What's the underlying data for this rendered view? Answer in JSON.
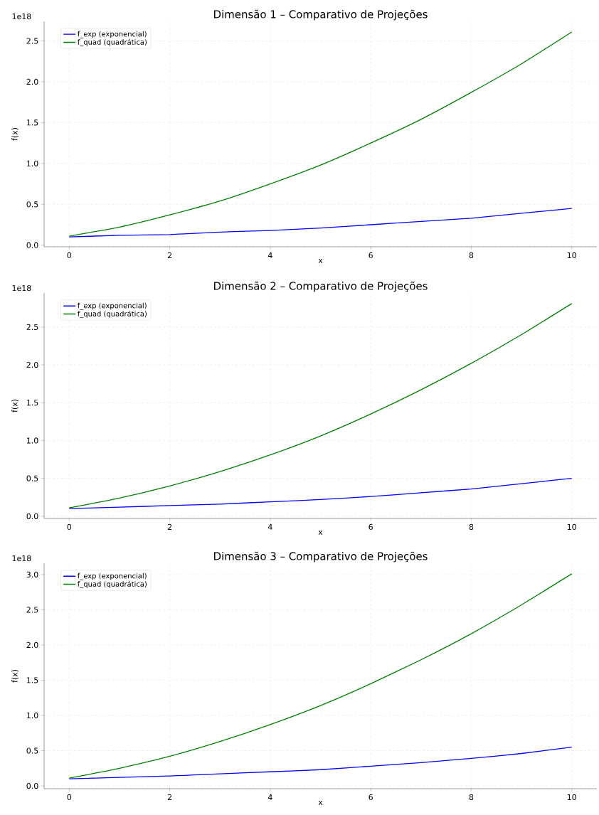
{
  "chart_data": [
    {
      "type": "line",
      "title": "Dimensão 1 – Comparativo de Projeções",
      "xlabel": "x",
      "ylabel": "f(x)",
      "annotations": [
        "1e18"
      ],
      "grid": true,
      "legend": "top left",
      "x": [
        0,
        1,
        2,
        3,
        4,
        5,
        6,
        7,
        8,
        9,
        10
      ],
      "xlim": [
        -0.5,
        10.5
      ],
      "ylim": [
        -0.02,
        2.74
      ],
      "xticks": [
        0,
        2,
        4,
        6,
        8,
        10
      ],
      "yticks": [
        {
          "value": 0,
          "label": "0.0"
        },
        {
          "value": 0.5,
          "label": "0.5"
        },
        {
          "value": 1,
          "label": "1.0"
        },
        {
          "value": 1.5,
          "label": "1.5"
        },
        {
          "value": 2,
          "label": "2.0"
        },
        {
          "value": 2.5,
          "label": "2.5"
        }
      ],
      "series": [
        {
          "name": "f_exp (exponencial)",
          "color": "#0000ff",
          "values": [
            0.1,
            0.12,
            0.13,
            0.16,
            0.18,
            0.21,
            0.25,
            0.29,
            0.33,
            0.39,
            0.45
          ]
        },
        {
          "name": "f_quad (quadrática)",
          "color": "#008000",
          "values": [
            0.11,
            0.22,
            0.37,
            0.54,
            0.75,
            0.98,
            1.25,
            1.54,
            1.87,
            2.22,
            2.61
          ]
        }
      ]
    },
    {
      "type": "line",
      "title": "Dimensão 2 – Comparativo de Projeções",
      "xlabel": "x",
      "ylabel": "f(x)",
      "annotations": [
        "1e18"
      ],
      "grid": true,
      "legend": "top left",
      "x": [
        0,
        1,
        2,
        3,
        4,
        5,
        6,
        7,
        8,
        9,
        10
      ],
      "xlim": [
        -0.5,
        10.5
      ],
      "ylim": [
        -0.03,
        2.95
      ],
      "xticks": [
        0,
        2,
        4,
        6,
        8,
        10
      ],
      "yticks": [
        {
          "value": 0,
          "label": "0.0"
        },
        {
          "value": 0.5,
          "label": "0.5"
        },
        {
          "value": 1,
          "label": "1.0"
        },
        {
          "value": 1.5,
          "label": "1.5"
        },
        {
          "value": 2,
          "label": "2.0"
        },
        {
          "value": 2.5,
          "label": "2.5"
        }
      ],
      "series": [
        {
          "name": "f_exp (exponencial)",
          "color": "#0000ff",
          "values": [
            0.1,
            0.12,
            0.14,
            0.16,
            0.19,
            0.22,
            0.26,
            0.31,
            0.36,
            0.43,
            0.5
          ]
        },
        {
          "name": "f_quad (quadrática)",
          "color": "#008000",
          "values": [
            0.11,
            0.24,
            0.4,
            0.59,
            0.81,
            1.06,
            1.35,
            1.67,
            2.02,
            2.4,
            2.81
          ]
        }
      ]
    },
    {
      "type": "line",
      "title": "Dimensão 3 – Comparativo de Projeções",
      "xlabel": "x",
      "ylabel": "f(x)",
      "annotations": [
        "1e18"
      ],
      "grid": true,
      "legend": "top left",
      "x": [
        0,
        1,
        2,
        3,
        4,
        5,
        6,
        7,
        8,
        9,
        10
      ],
      "xlim": [
        -0.5,
        10.5
      ],
      "ylim": [
        -0.04,
        3.16
      ],
      "xticks": [
        0,
        2,
        4,
        6,
        8,
        10
      ],
      "yticks": [
        {
          "value": 0,
          "label": "0.0"
        },
        {
          "value": 0.5,
          "label": "0.5"
        },
        {
          "value": 1,
          "label": "1.0"
        },
        {
          "value": 1.5,
          "label": "1.5"
        },
        {
          "value": 2,
          "label": "2.0"
        },
        {
          "value": 2.5,
          "label": "2.5"
        },
        {
          "value": 3,
          "label": "3.0"
        }
      ],
      "series": [
        {
          "name": "f_exp (exponencial)",
          "color": "#0000ff",
          "values": [
            0.1,
            0.12,
            0.14,
            0.17,
            0.2,
            0.23,
            0.28,
            0.33,
            0.39,
            0.46,
            0.55
          ]
        },
        {
          "name": "f_quad (quadrática)",
          "color": "#008000",
          "values": [
            0.11,
            0.25,
            0.42,
            0.63,
            0.87,
            1.14,
            1.45,
            1.79,
            2.16,
            2.57,
            3.01
          ]
        }
      ]
    }
  ]
}
